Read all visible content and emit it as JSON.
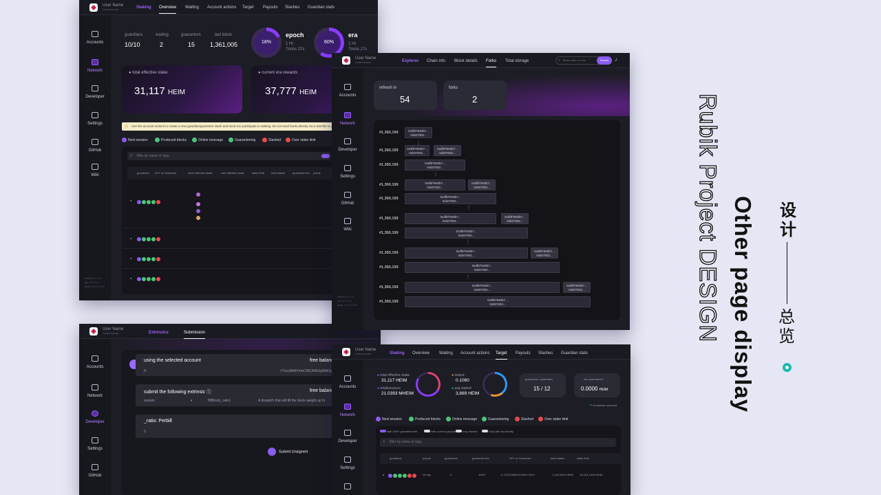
{
  "sidebar": [
    "Accounts",
    "Network",
    "Developer",
    "Settings",
    "GitHub",
    "Wiki"
  ],
  "user": {
    "name": "User Name",
    "sub": "Lorem ipsum"
  },
  "staking": {
    "tabs": [
      "Staking",
      "Overview",
      "Waiting",
      "Account actions",
      "Target",
      "Payouts",
      "Slashes",
      "Guardian stats"
    ],
    "stats": [
      {
        "label": "guardians",
        "value": "10/10"
      },
      {
        "label": "waiting",
        "value": "2"
      },
      {
        "label": "guarantors",
        "value": "15"
      },
      {
        "label": "last block",
        "value": "1,361,005"
      }
    ],
    "epoch": {
      "pct": "18%",
      "title": "epoch",
      "l1": "1 Hr",
      "l2": "7mins 27s",
      "fill": 0.18
    },
    "era": {
      "pct": "60%",
      "title": "era",
      "l1": "1 Hr",
      "l2": "7mins 27s",
      "fill": 0.6
    },
    "total_stake": {
      "label": "total effective stake",
      "value": "31,117",
      "unit": "HEIM"
    },
    "era_rewards": {
      "label": "current era rewards",
      "value": "37,777",
      "unit": "HEIM"
    },
    "warning": "Use the account actions to create a new guardian/guarantor stash and bond it to participate in staking. Do not send funds directly via a transfer to a guardian.",
    "legend": [
      "Next session",
      "Produced blocks",
      "Online message",
      "Guaranteeing",
      "Slashed",
      "Over stake limit"
    ],
    "filter_placeholder": "filter by name or tags",
    "columns": [
      "guardians",
      "APY of Guarantor",
      "other effective stake",
      "own effective stake",
      "stake limit",
      "total stakes",
      "guarantee fee",
      "points"
    ],
    "version": [
      "Icebird v1.2.0",
      "api v4.2.2-4",
      "apps v0.20.2-10"
    ]
  },
  "explorer": {
    "tabs": [
      "Explorer",
      "Chain info",
      "Block details",
      "Forks",
      "Total storage"
    ],
    "search_placeholder": "Block hash or num",
    "search_btn": "Search",
    "refresh": {
      "label": "refresh in",
      "value": "54"
    },
    "forks": {
      "label": "forks",
      "value": "2"
    },
    "block_no": "#1,360,199",
    "hash1": "0xdf97940b7...",
    "hash2": "0xb07002..."
  },
  "extrinsics": {
    "tabs": [
      "Extrinsics",
      "Submission"
    ],
    "account_label": "using the selected account",
    "balance_label": "free balance",
    "account_value": "H",
    "account_addr": "r7GvuWAPrXmCMCA993xj6MkXyStGkWu5Uv...",
    "submit_label": "submit the following extrinsic",
    "system": "system",
    "fill": "fillBlock(_ratio)",
    "desc": "A dispatch that will fill the block weight up to",
    "ratio": "_ratio: Perbill",
    "ratio_val": "0",
    "btn": "Submit Unsigned"
  },
  "target": {
    "tabs": [
      "Staking",
      "Overview",
      "Waiting",
      "Account actions",
      "Target",
      "Payouts",
      "Slashes",
      "Guardian stats"
    ],
    "effective": {
      "label": "total effective stake",
      "value": "31,117 HEIM"
    },
    "issuance": {
      "label": "totalIssuance",
      "value": "21.0393 MHEIM"
    },
    "lowest": {
      "label": "lowest",
      "value": "0.1060"
    },
    "staked": {
      "label": "avg staked",
      "value": "3,889 HEIM"
    },
    "gg": {
      "label": "guarantors / guardians",
      "value": "15 / 12"
    },
    "min": {
      "label": "min guaranteed",
      "value": "0.0000",
      "unit": "HEIM"
    },
    "selected": "Guarantee selected",
    "toggles": [
      "with 20%+ guarantee fee",
      "with current payouts",
      "only elected",
      "Only with an identity"
    ],
    "columns": [
      "guardians",
      "payout",
      "guarantors",
      "guarantee fee",
      "APY of Guarantor",
      "total stakes",
      "stake limit"
    ],
    "row": [
      "16 day",
      "3",
      "100%",
      "2.722010860211987e+54%",
      "1,118.9434 HEIM",
      "14,024.1418 HEIM"
    ]
  },
  "right": {
    "title1": "Other page display",
    "title2": "Rubik Project DESIGN",
    "cn1": "设计",
    "cn2": "总览"
  },
  "colors": {
    "bg": "#e6e7f4",
    "accent": "#9b62ff",
    "panel": "#1d1d25",
    "teal": "#19b9b0"
  }
}
